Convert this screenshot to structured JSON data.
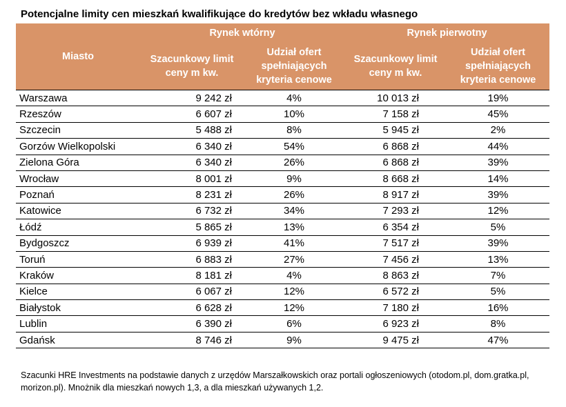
{
  "title": "Potencjalne limity cen mieszkań kwalifikujące do kredytów bez wkładu własnego",
  "table": {
    "col_city": "Miasto",
    "group_secondary": "Rynek wtórny",
    "group_primary": "Rynek pierwotny",
    "col_limit": "Szacunkowy limit ceny m kw.",
    "col_share": "Udział ofert spełniających kryteria cenowe",
    "rows": [
      {
        "city": "Warszawa",
        "sec_limit": "9 242 zł",
        "sec_share": "4%",
        "pri_limit": "10 013 zł",
        "pri_share": "19%"
      },
      {
        "city": "Rzeszów",
        "sec_limit": "6 607 zł",
        "sec_share": "10%",
        "pri_limit": "7 158 zł",
        "pri_share": "45%"
      },
      {
        "city": "Szczecin",
        "sec_limit": "5 488 zł",
        "sec_share": "8%",
        "pri_limit": "5 945 zł",
        "pri_share": "2%"
      },
      {
        "city": "Gorzów Wielkopolski",
        "sec_limit": "6 340 zł",
        "sec_share": "54%",
        "pri_limit": "6 868 zł",
        "pri_share": "44%"
      },
      {
        "city": "Zielona Góra",
        "sec_limit": "6 340 zł",
        "sec_share": "26%",
        "pri_limit": "6 868 zł",
        "pri_share": "39%"
      },
      {
        "city": "Wrocław",
        "sec_limit": "8 001 zł",
        "sec_share": "9%",
        "pri_limit": "8 668 zł",
        "pri_share": "14%"
      },
      {
        "city": "Poznań",
        "sec_limit": "8 231 zł",
        "sec_share": "26%",
        "pri_limit": "8 917 zł",
        "pri_share": "39%"
      },
      {
        "city": "Katowice",
        "sec_limit": "6 732 zł",
        "sec_share": "34%",
        "pri_limit": "7 293 zł",
        "pri_share": "12%"
      },
      {
        "city": "Łódź",
        "sec_limit": "5 865 zł",
        "sec_share": "13%",
        "pri_limit": "6 354 zł",
        "pri_share": "5%"
      },
      {
        "city": "Bydgoszcz",
        "sec_limit": "6 939 zł",
        "sec_share": "41%",
        "pri_limit": "7 517 zł",
        "pri_share": "39%"
      },
      {
        "city": "Toruń",
        "sec_limit": "6 883 zł",
        "sec_share": "27%",
        "pri_limit": "7 456 zł",
        "pri_share": "13%"
      },
      {
        "city": "Kraków",
        "sec_limit": "8 181 zł",
        "sec_share": "4%",
        "pri_limit": "8 863 zł",
        "pri_share": "7%"
      },
      {
        "city": "Kielce",
        "sec_limit": "6 067 zł",
        "sec_share": "12%",
        "pri_limit": "6 572 zł",
        "pri_share": "5%"
      },
      {
        "city": "Białystok",
        "sec_limit": "6 628 zł",
        "sec_share": "12%",
        "pri_limit": "7 180 zł",
        "pri_share": "16%"
      },
      {
        "city": "Lublin",
        "sec_limit": "6 390 zł",
        "sec_share": "6%",
        "pri_limit": "6 923 zł",
        "pri_share": "8%"
      },
      {
        "city": "Gdańsk",
        "sec_limit": "8 746 zł",
        "sec_share": "9%",
        "pri_limit": "9 475 zł",
        "pri_share": "47%"
      }
    ]
  },
  "footnote": "Szacunki HRE Investments na podstawie danych z urzędów Marszałkowskich oraz portali ogłoszeniowych (otodom.pl, dom.gratka.pl, morizon.pl). Mnożnik dla mieszkań nowych 1,3, a dla mieszkań używanych 1,2.",
  "colors": {
    "header_bg": "#d99468",
    "header_text": "#ffffff"
  }
}
